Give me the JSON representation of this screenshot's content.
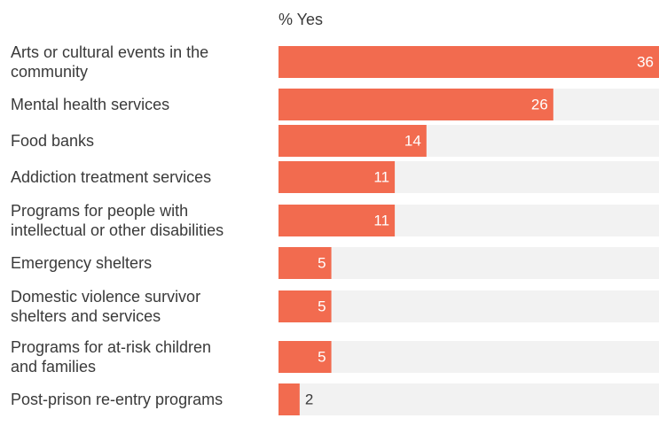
{
  "colors": {
    "bar": "#f26b4f",
    "track": "#f2f2f2",
    "text": "#3a3a3a"
  },
  "chart_data": {
    "type": "bar",
    "orientation": "horizontal",
    "header": "% Yes",
    "categories": [
      "Arts or cultural events in the community",
      "Mental health services",
      "Food banks",
      "Addiction treatment services",
      "Programs for people with intellectual or other disabilities",
      "Emergency shelters",
      "Domestic violence survivor shelters and services",
      "Programs for at-risk children and families",
      "Post-prison re-entry programs"
    ],
    "label_lines": [
      [
        "Arts or cultural events in the",
        "community"
      ],
      [
        "Mental health services"
      ],
      [
        "Food banks"
      ],
      [
        "Addiction treatment services"
      ],
      [
        "Programs for people with",
        "intellectual or other disabilities"
      ],
      [
        "Emergency shelters"
      ],
      [
        "Domestic violence survivor",
        "shelters and services"
      ],
      [
        "Programs for at-risk children",
        "and families"
      ],
      [
        "Post-prison re-entry programs"
      ]
    ],
    "values": [
      36,
      26,
      14,
      11,
      11,
      5,
      5,
      5,
      2
    ],
    "xlim": [
      0,
      36
    ],
    "grid": false,
    "legend": "none"
  }
}
